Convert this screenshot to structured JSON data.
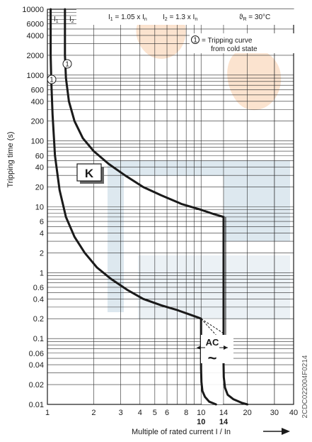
{
  "chart_data": {
    "type": "line",
    "title": "",
    "xlabel": "Multiple of rated current I / In",
    "ylabel": "Tripping time (s)",
    "x_scale": "log",
    "y_scale": "log",
    "xlim": [
      1,
      40
    ],
    "ylim": [
      0.01,
      10000
    ],
    "grid": true,
    "x_ticks": [
      1,
      2,
      3,
      4,
      5,
      6,
      8,
      10,
      14,
      20,
      30,
      40
    ],
    "x_ticks_bold": [
      10,
      14
    ],
    "y_ticks": [
      0.01,
      0.02,
      0.04,
      0.06,
      0.1,
      0.2,
      0.4,
      0.6,
      1,
      2,
      4,
      6,
      10,
      20,
      40,
      60,
      100,
      200,
      400,
      600,
      1000,
      2000,
      4000,
      6000,
      10000
    ],
    "series": [
      {
        "name": "I1",
        "x": [
          1.05,
          1.05,
          1.06,
          1.08,
          1.12,
          1.2,
          1.32,
          1.5,
          1.75,
          2.1,
          2.6,
          3.3,
          4.2,
          5.5,
          7,
          8.5,
          9.5,
          10
        ],
        "y": [
          10000,
          2000,
          800,
          250,
          60,
          18,
          7,
          3.5,
          2,
          1.2,
          0.8,
          0.55,
          0.4,
          0.32,
          0.27,
          0.23,
          0.21,
          0.2
        ]
      },
      {
        "name": "I2",
        "x": [
          1.3,
          1.3,
          1.32,
          1.38,
          1.5,
          1.7,
          2,
          2.5,
          3.2,
          4.2,
          5.5,
          7.5,
          10,
          12,
          13.5,
          14
        ],
        "y": [
          10000,
          2000,
          900,
          400,
          200,
          110,
          70,
          45,
          30,
          20,
          15,
          11,
          9,
          7.8,
          7.2,
          7
        ]
      },
      {
        "name": "AC-lower",
        "x": [
          10,
          10,
          10,
          10.05,
          10.2,
          10.6,
          11.3,
          12.5
        ],
        "y": [
          0.2,
          0.07,
          0.035,
          0.022,
          0.016,
          0.013,
          0.011,
          0.01
        ]
      },
      {
        "name": "AC-upper",
        "x": [
          14,
          14,
          14,
          14.05,
          14.3,
          14.9,
          16.2,
          18.5,
          20
        ],
        "y": [
          7,
          0.07,
          0.04,
          0.026,
          0.018,
          0.014,
          0.012,
          0.0105,
          0.01
        ]
      }
    ],
    "dashed_transition": {
      "x": [
        10,
        14
      ],
      "y_upper": [
        0.2,
        0.12
      ],
      "y_lower": [
        0.2,
        0.085
      ]
    },
    "annotations": {
      "label_i1": "I",
      "label_i1_sub": "1",
      "label_i2": "I",
      "label_i2_sub": "2",
      "formula_i1_left": "I",
      "formula_i1_sub": "1",
      "formula_i1_right": " = 1.05 x I",
      "formula_i1_n": "n",
      "formula_i2_left": "I",
      "formula_i2_sub": "2",
      "formula_i2_right": " = 1.3 x I",
      "formula_i2_n": "n",
      "temp_symbol": "ϑ",
      "temp_sub": "R",
      "temp_value": " = 30°C",
      "marker": "1",
      "legend_line1": "= Tripping curve",
      "legend_line2": "from cold state",
      "k_label": "K",
      "ac_label": "AC",
      "tilde": "~",
      "doc_id": "2CDC022004F0214"
    },
    "colors": {
      "curve": "#1a1a1a",
      "grid": "#2a2a2a",
      "watermark_orange": "#fbe3cf",
      "watermark_blue": "#dde8ef"
    }
  }
}
